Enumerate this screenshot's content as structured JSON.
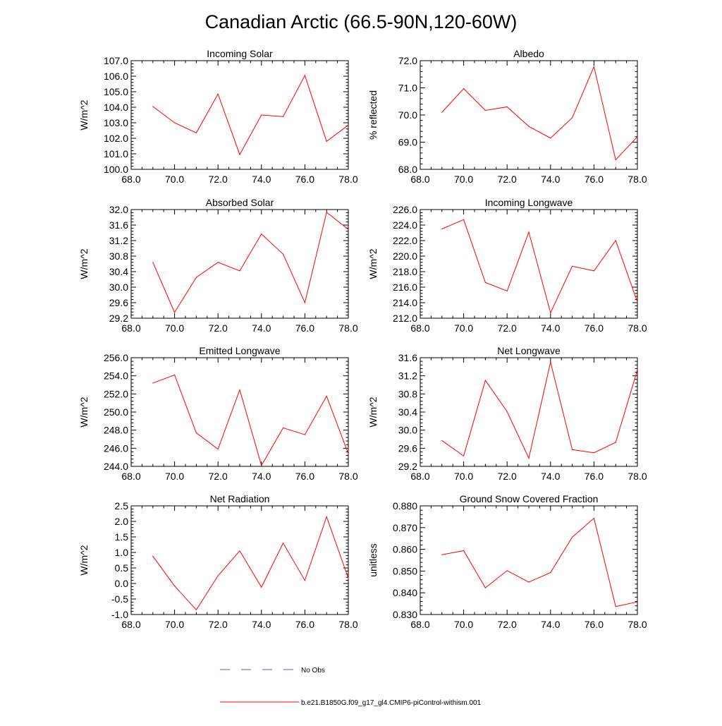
{
  "title": "Canadian Arctic (66.5-90N,120-60W)",
  "colors": {
    "series": "#ff0000",
    "obs": "#4466cc",
    "axis": "#000000"
  },
  "legend": [
    {
      "label": "No Obs",
      "style": "dashed",
      "color": "#4466cc"
    },
    {
      "label": "b.e21.B1850G.f09_g17_gl4.CMIP6-piControl-withism.001",
      "style": "solid",
      "color": "#ff0000"
    }
  ],
  "chart_data": [
    {
      "type": "line",
      "title": "Incoming Solar",
      "ylabel": "W/m^2",
      "xlim": [
        68,
        78
      ],
      "ylim": [
        100,
        107
      ],
      "xticks": [
        "68.0",
        "70.0",
        "72.0",
        "74.0",
        "76.0",
        "78.0"
      ],
      "yticks": [
        "100.0",
        "101.0",
        "102.0",
        "103.0",
        "104.0",
        "105.0",
        "106.0",
        "107.0"
      ],
      "x": [
        69,
        70,
        71,
        72,
        73,
        74,
        75,
        76,
        77,
        78
      ],
      "series": [
        {
          "name": "b.e21.B1850G.f09_g17_gl4.CMIP6-piControl-withism.001",
          "values": [
            104.05,
            103.0,
            102.35,
            104.85,
            100.95,
            103.5,
            103.4,
            106.05,
            101.8,
            102.85
          ]
        }
      ]
    },
    {
      "type": "line",
      "title": "Albedo",
      "ylabel": "% reflected",
      "xlim": [
        68,
        78
      ],
      "ylim": [
        68,
        72
      ],
      "xticks": [
        "68.0",
        "70.0",
        "72.0",
        "74.0",
        "76.0",
        "78.0"
      ],
      "yticks": [
        "68.0",
        "69.0",
        "70.0",
        "71.0",
        "72.0"
      ],
      "x": [
        69,
        70,
        71,
        72,
        73,
        74,
        75,
        76,
        77,
        78
      ],
      "series": [
        {
          "name": "b.e21.B1850G.f09_g17_gl4.CMIP6-piControl-withism.001",
          "values": [
            70.1,
            70.97,
            70.17,
            70.3,
            69.58,
            69.15,
            69.9,
            71.78,
            68.35,
            69.2
          ]
        }
      ]
    },
    {
      "type": "line",
      "title": "Absorbed Solar",
      "ylabel": "W/m^2",
      "xlim": [
        68,
        78
      ],
      "ylim": [
        29.2,
        32.0
      ],
      "xticks": [
        "68.0",
        "70.0",
        "72.0",
        "74.0",
        "76.0",
        "78.0"
      ],
      "yticks": [
        "29.2",
        "29.6",
        "30.0",
        "30.4",
        "30.8",
        "31.2",
        "31.6",
        "32.0"
      ],
      "x": [
        69,
        70,
        71,
        72,
        73,
        74,
        75,
        76,
        77,
        78
      ],
      "series": [
        {
          "name": "b.e21.B1850G.f09_g17_gl4.CMIP6-piControl-withism.001",
          "values": [
            30.64,
            29.35,
            30.25,
            30.64,
            30.42,
            31.37,
            30.85,
            29.6,
            31.93,
            31.49
          ]
        }
      ]
    },
    {
      "type": "line",
      "title": "Incoming Longwave",
      "ylabel": "W/m^2",
      "xlim": [
        68,
        78
      ],
      "ylim": [
        212,
        226
      ],
      "xticks": [
        "68.0",
        "70.0",
        "72.0",
        "74.0",
        "76.0",
        "78.0"
      ],
      "yticks": [
        "212.0",
        "214.0",
        "216.0",
        "218.0",
        "220.0",
        "222.0",
        "224.0",
        "226.0"
      ],
      "x": [
        69,
        70,
        71,
        72,
        73,
        74,
        75,
        76,
        77,
        78
      ],
      "series": [
        {
          "name": "b.e21.B1850G.f09_g17_gl4.CMIP6-piControl-withism.001",
          "values": [
            223.5,
            224.7,
            216.6,
            215.5,
            223.1,
            212.7,
            218.7,
            218.1,
            222.0,
            214.1
          ]
        }
      ]
    },
    {
      "type": "line",
      "title": "Emitted Longwave",
      "ylabel": "W/m^2",
      "xlim": [
        68,
        78
      ],
      "ylim": [
        244,
        256
      ],
      "xticks": [
        "68.0",
        "70.0",
        "72.0",
        "74.0",
        "76.0",
        "78.0"
      ],
      "yticks": [
        "244.0",
        "246.0",
        "248.0",
        "250.0",
        "252.0",
        "254.0",
        "256.0"
      ],
      "x": [
        69,
        70,
        71,
        72,
        73,
        74,
        75,
        76,
        77,
        78
      ],
      "series": [
        {
          "name": "b.e21.B1850G.f09_g17_gl4.CMIP6-piControl-withism.001",
          "values": [
            253.2,
            254.1,
            247.7,
            245.9,
            252.45,
            244.1,
            248.25,
            247.5,
            251.75,
            245.4
          ]
        }
      ]
    },
    {
      "type": "line",
      "title": "Net Longwave",
      "ylabel": "W/m^2",
      "xlim": [
        68,
        78
      ],
      "ylim": [
        29.2,
        31.6
      ],
      "xticks": [
        "68.0",
        "70.0",
        "72.0",
        "74.0",
        "76.0",
        "78.0"
      ],
      "yticks": [
        "29.2",
        "29.6",
        "30.0",
        "30.4",
        "30.8",
        "31.2",
        "31.6"
      ],
      "x": [
        69,
        70,
        71,
        72,
        73,
        74,
        75,
        76,
        77,
        78
      ],
      "series": [
        {
          "name": "b.e21.B1850G.f09_g17_gl4.CMIP6-piControl-withism.001",
          "values": [
            29.77,
            29.43,
            31.1,
            30.41,
            29.38,
            31.5,
            29.57,
            29.5,
            29.73,
            31.33
          ]
        }
      ]
    },
    {
      "type": "line",
      "title": "Net Radiation",
      "ylabel": "W/m^2",
      "xlim": [
        68,
        78
      ],
      "ylim": [
        -1.0,
        2.5
      ],
      "xticks": [
        "68.0",
        "70.0",
        "72.0",
        "74.0",
        "76.0",
        "78.0"
      ],
      "yticks": [
        "-1.0",
        "-0.5",
        "0.0",
        "0.5",
        "1.0",
        "1.5",
        "2.0",
        "2.5"
      ],
      "x": [
        69,
        70,
        71,
        72,
        73,
        74,
        75,
        76,
        77,
        78
      ],
      "series": [
        {
          "name": "b.e21.B1850G.f09_g17_gl4.CMIP6-piControl-withism.001",
          "values": [
            0.88,
            -0.08,
            -0.85,
            0.25,
            1.05,
            -0.12,
            1.3,
            0.1,
            2.15,
            0.17
          ]
        }
      ]
    },
    {
      "type": "line",
      "title": "Ground Snow Covered Fraction",
      "ylabel": "unitless",
      "xlim": [
        68,
        78
      ],
      "ylim": [
        0.83,
        0.88
      ],
      "xticks": [
        "68.0",
        "70.0",
        "72.0",
        "74.0",
        "76.0",
        "78.0"
      ],
      "yticks": [
        "0.830",
        "0.840",
        "0.850",
        "0.860",
        "0.870",
        "0.880"
      ],
      "x": [
        69,
        70,
        71,
        72,
        73,
        74,
        75,
        76,
        77,
        78
      ],
      "series": [
        {
          "name": "b.e21.B1850G.f09_g17_gl4.CMIP6-piControl-withism.001",
          "values": [
            0.8575,
            0.8594,
            0.8423,
            0.8502,
            0.8449,
            0.8493,
            0.8656,
            0.8743,
            0.8337,
            0.8358
          ]
        }
      ]
    }
  ]
}
